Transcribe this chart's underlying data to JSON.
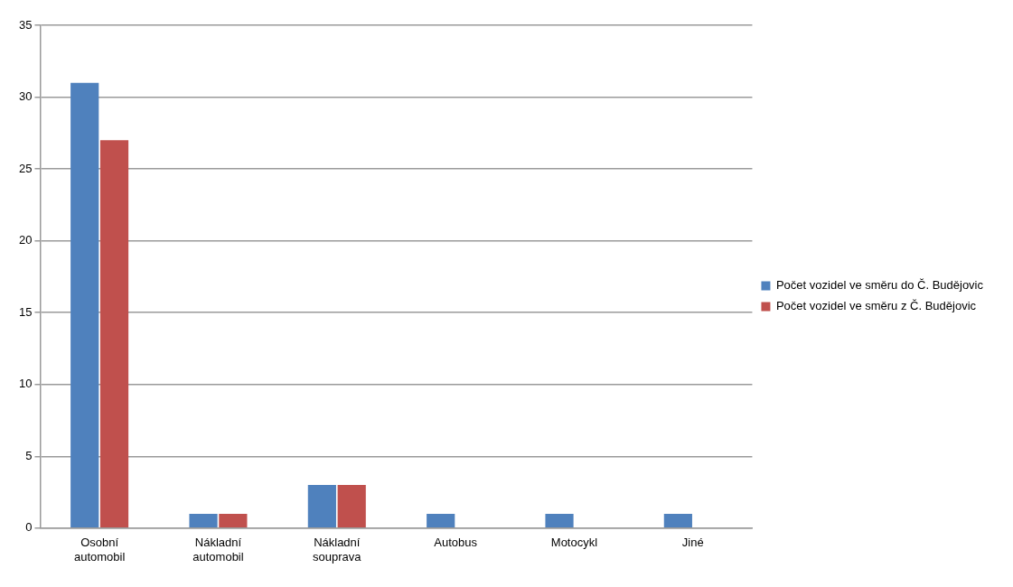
{
  "chart_data": {
    "type": "bar",
    "categories": [
      "Osobní automobil",
      "Nákladní automobil",
      "Nákladní souprava",
      "Autobus",
      "Motocykl",
      "Jiné"
    ],
    "series": [
      {
        "name": "Počet vozidel ve směru do Č. Budějovic",
        "color": "#4f81bd",
        "values": [
          31,
          1,
          3,
          1,
          1,
          1
        ]
      },
      {
        "name": "Počet vozidel ve směru z Č. Budějovic",
        "color": "#c0504d",
        "values": [
          27,
          1,
          3,
          0,
          0,
          0
        ]
      }
    ],
    "ylim": [
      0,
      35
    ],
    "yticks": [
      0,
      5,
      10,
      15,
      20,
      25,
      30,
      35
    ],
    "grid": "y",
    "legend": "right"
  }
}
